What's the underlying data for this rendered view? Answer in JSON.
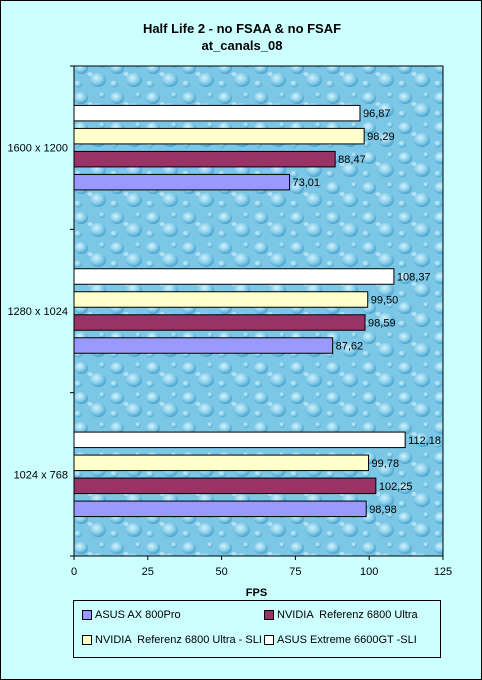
{
  "chart_data": {
    "type": "bar",
    "orientation": "horizontal",
    "title": "Half Life 2 - no FSAA & no FSAF",
    "subtitle": "at_canals_08",
    "xlabel": "FPS",
    "ylabel": "",
    "xlim": [
      0,
      125
    ],
    "x_ticks": [
      "0",
      "25",
      "50",
      "75",
      "100",
      "125"
    ],
    "categories": [
      "1600 x 1200",
      "1280 x 1024",
      "1024 x 768"
    ],
    "series": [
      {
        "name": "ASUS AX 800Pro",
        "color": "#9999ff",
        "values": [
          73.01,
          87.62,
          98.98
        ],
        "labels": [
          "73,01",
          "87,62",
          "98,98"
        ]
      },
      {
        "name": "NVIDIA  Referenz 6800 Ultra",
        "color": "#993366",
        "values": [
          88.47,
          98.59,
          102.25
        ],
        "labels": [
          "88,47",
          "98,59",
          "102,25"
        ]
      },
      {
        "name": "NVIDIA  Referenz 6800 Ultra - SLI",
        "color": "#ffffcc",
        "values": [
          98.29,
          99.5,
          99.78
        ],
        "labels": [
          "98,29",
          "99,50",
          "99,78"
        ]
      },
      {
        "name": "ASUS Extreme 6600GT -SLI",
        "color": "#ffffff",
        "values": [
          96.87,
          108.37,
          112.18
        ],
        "labels": [
          "96,87",
          "108,37",
          "112,18"
        ]
      }
    ],
    "legend_position": "bottom",
    "grid": false,
    "plot_background": "water-drops texture"
  }
}
